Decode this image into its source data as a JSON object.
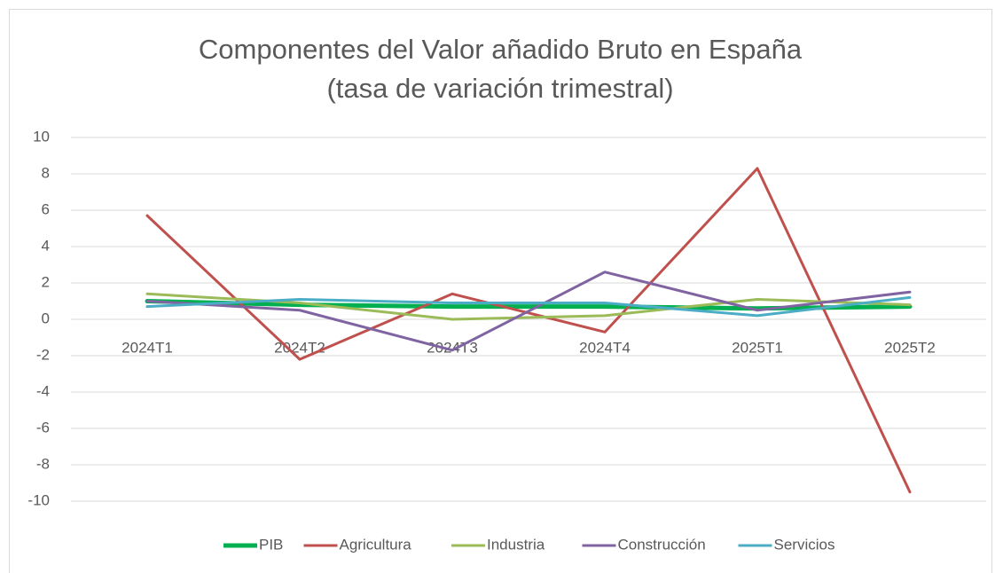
{
  "chart_data": {
    "type": "line",
    "title": "Componentes del Valor añadido Bruto en España",
    "subtitle": "(tasa de variación trimestral)",
    "categories": [
      "2024T1",
      "2024T2",
      "2024T3",
      "2024T4",
      "2025T1",
      "2025T2"
    ],
    "series": [
      {
        "name": "PIB",
        "color": "#00b050",
        "values": [
          1.0,
          0.8,
          0.7,
          0.7,
          0.6,
          0.7
        ]
      },
      {
        "name": "Agricultura",
        "color": "#c0504d",
        "values": [
          5.7,
          -2.2,
          1.4,
          -0.7,
          8.3,
          -9.5
        ]
      },
      {
        "name": "Industria",
        "color": "#9bbb59",
        "values": [
          1.4,
          0.9,
          0.0,
          0.2,
          1.1,
          0.8
        ]
      },
      {
        "name": "Construcción",
        "color": "#8064a2",
        "values": [
          1.0,
          0.5,
          -1.7,
          2.6,
          0.5,
          1.5
        ]
      },
      {
        "name": "Servicios",
        "color": "#4bacc6",
        "values": [
          0.7,
          1.1,
          0.9,
          0.9,
          0.2,
          1.2
        ]
      }
    ],
    "ylim": [
      -10,
      10
    ],
    "yticks": [
      -10,
      -8,
      -6,
      -4,
      -2,
      0,
      2,
      4,
      6,
      8,
      10
    ],
    "grid": true,
    "legend": "bottom"
  }
}
